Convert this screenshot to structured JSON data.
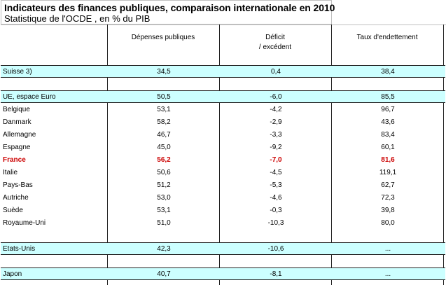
{
  "title": "Indicateurs des finances publiques, comparaison internationale en 2010",
  "subtitle": "Statistique de l'OCDE , en % du PIB",
  "headers": {
    "depenses": "Dépenses publiques",
    "deficit_line1": "Déficit",
    "deficit_line2": "/ excédent",
    "endettement": "Taux d'endettement"
  },
  "rows": [
    {
      "country": "Suisse 3)",
      "depenses": "34,5",
      "deficit": "0,4",
      "endettement": "38,4",
      "highlight": true
    },
    {
      "country": "UE, espace Euro",
      "depenses": "50,5",
      "deficit": "-6,0",
      "endettement": "85,5",
      "highlight": true
    },
    {
      "country": "Belgique",
      "depenses": "53,1",
      "deficit": "-4,2",
      "endettement": "96,7"
    },
    {
      "country": "Danmark",
      "depenses": "58,2",
      "deficit": "-2,9",
      "endettement": "43,6"
    },
    {
      "country": "Allemagne",
      "depenses": "46,7",
      "deficit": "-3,3",
      "endettement": "83,4"
    },
    {
      "country": "Espagne",
      "depenses": "45,0",
      "deficit": "-9,2",
      "endettement": "60,1"
    },
    {
      "country": "France",
      "depenses": "56,2",
      "deficit": "-7,0",
      "endettement": "81,6",
      "emphasis": true
    },
    {
      "country": "Italie",
      "depenses": "50,6",
      "deficit": "-4,5",
      "endettement": "119,1"
    },
    {
      "country": "Pays-Bas",
      "depenses": "51,2",
      "deficit": "-5,3",
      "endettement": "62,7"
    },
    {
      "country": "Autriche",
      "depenses": "53,0",
      "deficit": "-4,6",
      "endettement": "72,3"
    },
    {
      "country": "Suède",
      "depenses": "53,1",
      "deficit": "-0,3",
      "endettement": "39,8"
    },
    {
      "country": "Royaume-Uni",
      "depenses": "51,0",
      "deficit": "-10,3",
      "endettement": "80,0"
    },
    {
      "country": "Etats-Unis",
      "depenses": "42,3",
      "deficit": "-10,6",
      "endettement": "...",
      "highlight": true
    },
    {
      "country": "Japon",
      "depenses": "40,7",
      "deficit": "-8,1",
      "endettement": "...",
      "highlight": true
    }
  ],
  "colors": {
    "highlight": "#ccffff",
    "emphasis": "#cc0000"
  }
}
